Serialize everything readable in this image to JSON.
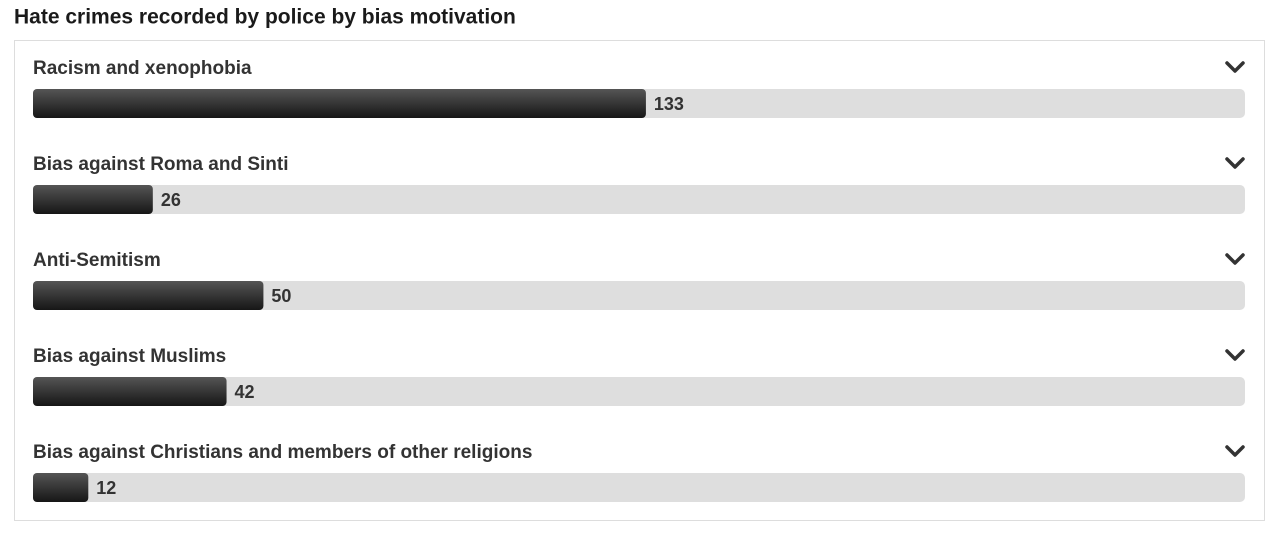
{
  "chart_data": {
    "type": "bar",
    "orientation": "horizontal",
    "title": "Hate crimes recorded by police by bias motivation",
    "categories": [
      "Racism and xenophobia",
      "Bias against Roma and Sinti",
      "Anti-Semitism",
      "Bias against Muslims",
      "Bias against Christians and members of other religions"
    ],
    "values": [
      133,
      26,
      50,
      42,
      12
    ],
    "color": "#2b2b2b"
  }
}
